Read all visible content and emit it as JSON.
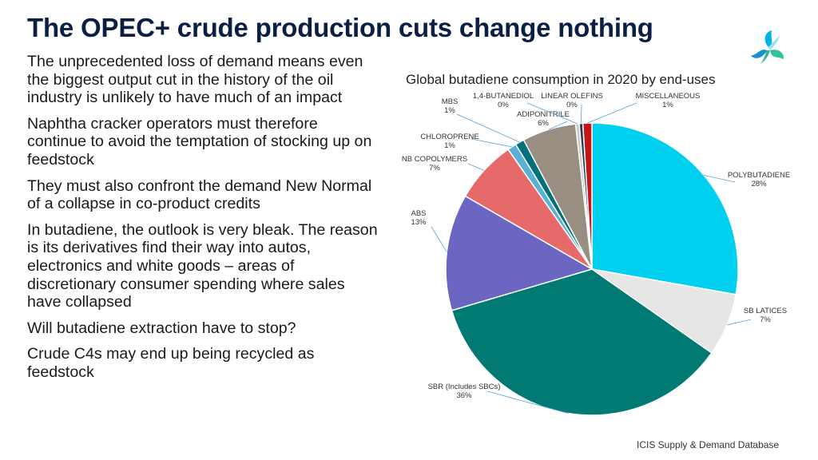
{
  "slide": {
    "title": "The OPEC+ crude production cuts change nothing",
    "bullets": [
      "The unprecedented loss of demand means even the biggest output cut in the history of the oil industry is unlikely to have much of an impact",
      "Naphtha cracker operators must therefore continue to avoid the temptation of stocking up on feedstock",
      "They must also confront the demand New Normal of a collapse in co-product credits",
      "In butadiene, the outlook is very bleak. The reason is its derivatives find their way into autos, electronics and white goods – areas of discretionary consumer spending where sales have collapsed",
      "Will butadiene extraction have to stop?",
      "Crude C4s may end up being recycled as feedstock"
    ],
    "source": "ICIS Supply & Demand Database",
    "logo_icon": "icis-logo-icon"
  },
  "chart_data": {
    "type": "pie",
    "title": "Global butadiene consumption in 2020 by end-uses",
    "unit": "%",
    "slices": [
      {
        "name": "POLYBUTADIENE",
        "value": 28,
        "label": "28%",
        "color": "#00d0f0"
      },
      {
        "name": "SB LATICES",
        "value": 7,
        "label": "7%",
        "color": "#e6e6e4"
      },
      {
        "name": "SBR (Includes SBCs)",
        "value": 36,
        "label": "36%",
        "color": "#007a73"
      },
      {
        "name": "ABS",
        "value": 13,
        "label": "13%",
        "color": "#6a66c2"
      },
      {
        "name": "NB COPOLYMERS",
        "value": 7,
        "label": "7%",
        "color": "#e66a6a"
      },
      {
        "name": "CHLOROPRENE",
        "value": 1,
        "label": "1%",
        "color": "#5ab0d6"
      },
      {
        "name": "MBS",
        "value": 1,
        "label": "1%",
        "color": "#00707a"
      },
      {
        "name": "ADIPONITRILE",
        "value": 6,
        "label": "6%",
        "color": "#998e82"
      },
      {
        "name": "1,4-BUTANEDIOL",
        "value": 0.4,
        "label": "0%",
        "color": "#c9c9c9"
      },
      {
        "name": "LINEAR OLEFINS",
        "value": 0.4,
        "label": "0%",
        "color": "#2e3b4c"
      },
      {
        "name": "MISCELLANEOUS",
        "value": 1,
        "label": "1%",
        "color": "#c4141c"
      }
    ]
  }
}
